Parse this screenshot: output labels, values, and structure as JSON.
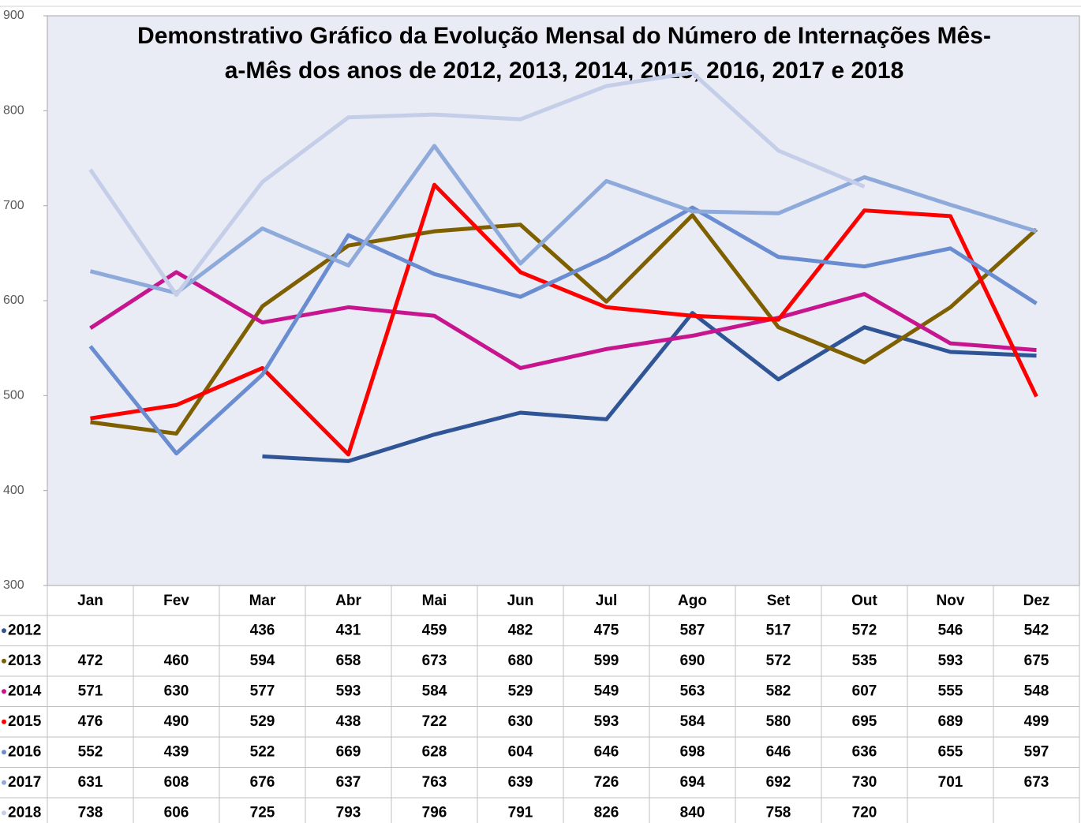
{
  "chart_data": {
    "type": "line",
    "title": [
      "Demonstrativo Gráfico da Evolução Mensal do Número de Internações Mês-",
      "a-Mês dos anos de  2012, 2013, 2014, 2015, 2016, 2017 e 2018"
    ],
    "categories": [
      "Jan",
      "Fev",
      "Mar",
      "Abr",
      "Mai",
      "Jun",
      "Jul",
      "Ago",
      "Set",
      "Out",
      "Nov",
      "Dez"
    ],
    "series": [
      {
        "name": "2012",
        "color": "#2f5597",
        "values": [
          null,
          null,
          436,
          431,
          459,
          482,
          475,
          587,
          517,
          572,
          546,
          542
        ]
      },
      {
        "name": "2013",
        "color": "#7f6000",
        "values": [
          472,
          460,
          594,
          658,
          673,
          680,
          599,
          690,
          572,
          535,
          593,
          675
        ]
      },
      {
        "name": "2014",
        "color": "#c7158f",
        "values": [
          571,
          630,
          577,
          593,
          584,
          529,
          549,
          563,
          582,
          607,
          555,
          548
        ]
      },
      {
        "name": "2015",
        "color": "#ff0000",
        "values": [
          476,
          490,
          529,
          438,
          722,
          630,
          593,
          584,
          580,
          695,
          689,
          499
        ]
      },
      {
        "name": "2016",
        "color": "#6a8cd0",
        "values": [
          552,
          439,
          522,
          669,
          628,
          604,
          646,
          698,
          646,
          636,
          655,
          597
        ]
      },
      {
        "name": "2017",
        "color": "#8eaadb",
        "values": [
          631,
          608,
          676,
          637,
          763,
          639,
          726,
          694,
          692,
          730,
          701,
          673
        ]
      },
      {
        "name": "2018",
        "color": "#c5cee8",
        "values": [
          738,
          606,
          725,
          793,
          796,
          791,
          826,
          840,
          758,
          720,
          null,
          null
        ]
      }
    ],
    "ylim": [
      300,
      900
    ],
    "yticks": [
      300,
      400,
      500,
      600,
      700,
      800,
      900
    ],
    "grid": false
  }
}
